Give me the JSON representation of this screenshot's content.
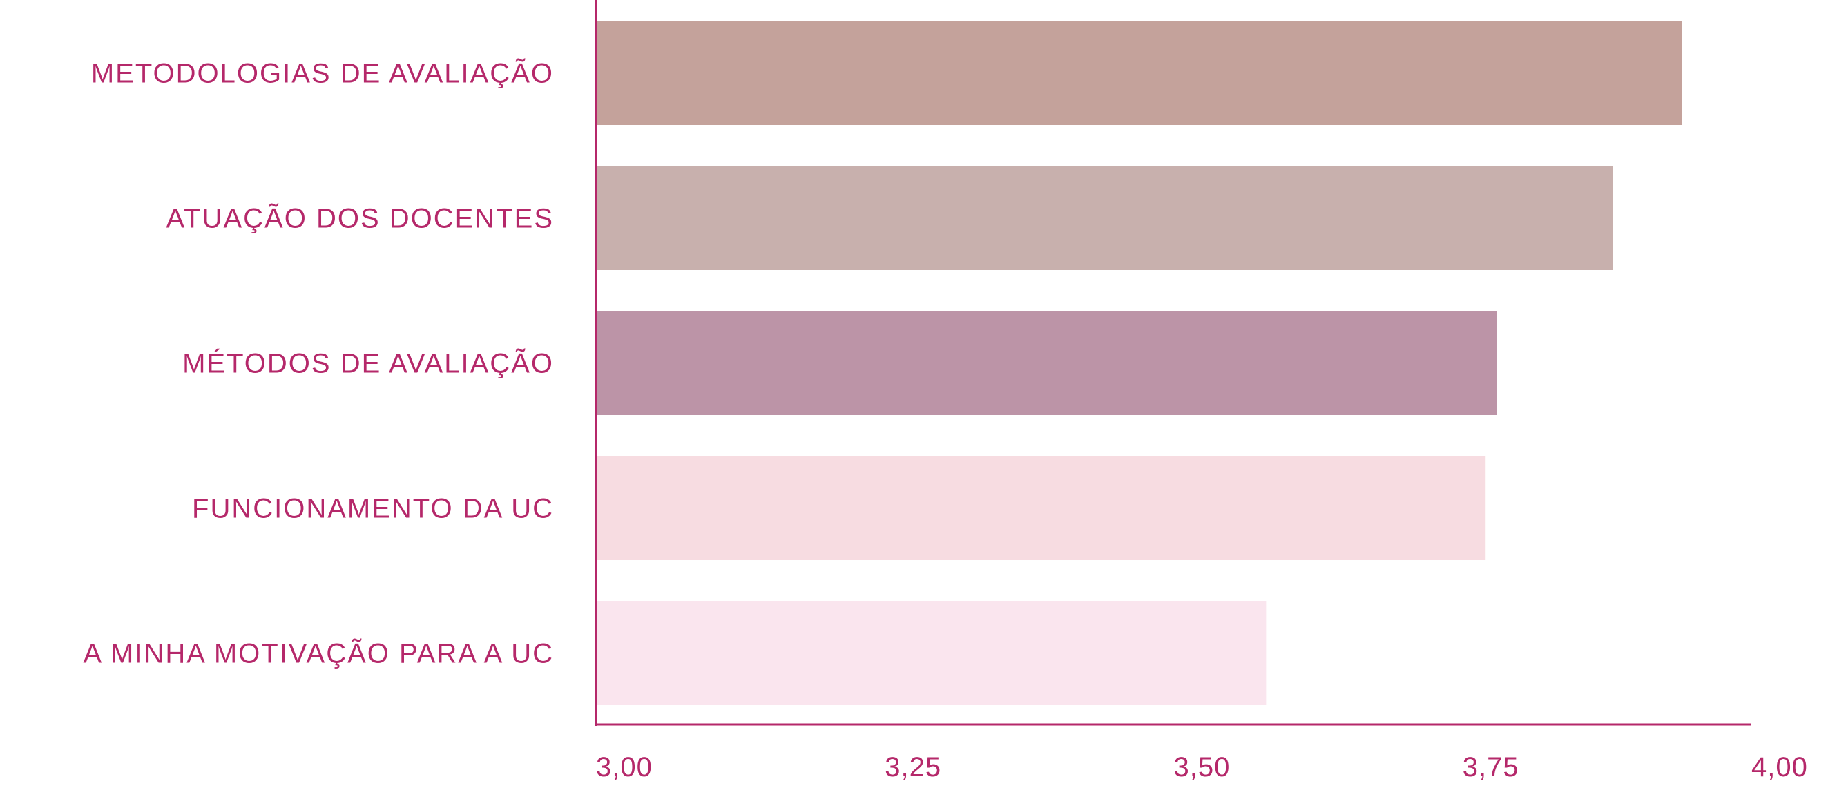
{
  "chart_data": {
    "type": "bar",
    "orientation": "horizontal",
    "title": "",
    "xlabel": "",
    "ylabel": "",
    "categories": [
      "METODOLOGIAS DE AVALIAÇÃO",
      "ATUAÇÃO DOS DOCENTES",
      "MÉTODOS DE AVALIAÇÃO",
      "FUNCIONAMENTO DA UC",
      "A MINHA MOTIVAÇÃO PARA A UC"
    ],
    "values": [
      3.94,
      3.88,
      3.78,
      3.77,
      3.58
    ],
    "bar_colors": [
      "#c4a29b",
      "#c8b0ad",
      "#bc94a7",
      "#f7dce1",
      "#fae5ee"
    ],
    "xlim": [
      3.0,
      4.0
    ],
    "ticks": [
      3.0,
      3.25,
      3.5,
      3.75,
      4.0
    ],
    "tick_labels": [
      "3,00",
      "3,25",
      "3,50",
      "3,75",
      "4,00"
    ],
    "grid": false,
    "legend": "none",
    "axis_color": "#b5286a",
    "text_color": "#b5286a"
  }
}
